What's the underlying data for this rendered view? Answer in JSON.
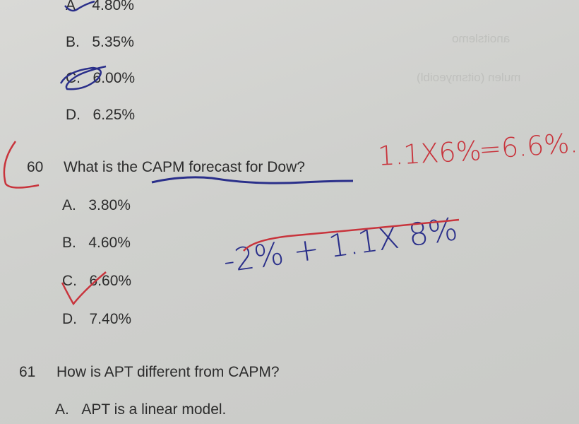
{
  "q59": {
    "options": [
      {
        "letter": "A.",
        "text": "4.80%"
      },
      {
        "letter": "B.",
        "text": "5.35%"
      },
      {
        "letter": "C.",
        "text": "6.00%"
      },
      {
        "letter": "D.",
        "text": "6.25%"
      }
    ]
  },
  "q60": {
    "number": "60",
    "question": "What is the CAPM forecast for Dow?",
    "options": [
      {
        "letter": "A.",
        "text": "3.80%"
      },
      {
        "letter": "B.",
        "text": "4.60%"
      },
      {
        "letter": "C.",
        "text": "6.60%"
      },
      {
        "letter": "D.",
        "text": "7.40%"
      }
    ]
  },
  "q61": {
    "number": "61",
    "question": "How is APT different from CAPM?",
    "options": [
      {
        "letter": "A.",
        "text": "APT is a linear model."
      }
    ]
  },
  "handwriting": {
    "red_calc": "1.1X6%",
    "red_result": "=6.6%.",
    "blue_calc": "-2% + 1.1X 8%"
  },
  "colors": {
    "red_ink": "#c8343c",
    "blue_ink": "#2a2f8a"
  }
}
